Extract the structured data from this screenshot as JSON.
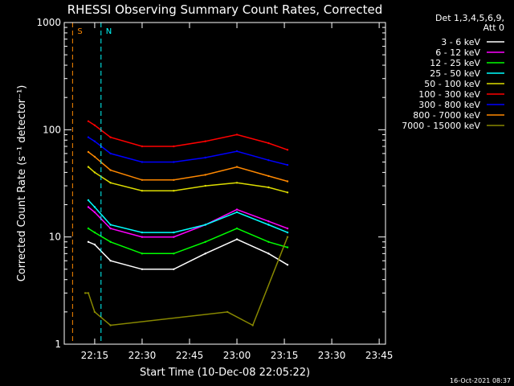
{
  "chart_data": {
    "type": "line",
    "title": "RHESSI Observing Summary Count Rates, Corrected",
    "xlabel": "Start Time (10-Dec-08 22:05:22)",
    "ylabel": "Corrected Count Rate (s⁻¹ detector⁻¹)",
    "y_scale": "log",
    "ylim": [
      1,
      1000
    ],
    "xlim": [
      "22:05:22",
      "23:47:00"
    ],
    "x_ticks": [
      "22:15",
      "22:30",
      "22:45",
      "23:00",
      "23:15",
      "23:30",
      "23:45"
    ],
    "y_ticks": [
      "1",
      "10",
      "100",
      "1000"
    ],
    "legend_header": [
      "Det 1,3,4,5,6,9,",
      "Att 0"
    ],
    "legend_placement": "right",
    "timestamp": "16-Oct-2021 08:37",
    "series": [
      {
        "name": "3 - 6 keV",
        "color": "#ffffff",
        "x": [
          "22:13",
          "22:15",
          "22:20",
          "22:30",
          "22:40",
          "22:50",
          "23:00",
          "23:10",
          "23:16"
        ],
        "y": [
          9,
          8.5,
          6,
          5,
          5,
          7,
          9.5,
          7,
          5.5
        ]
      },
      {
        "name": "6 - 12 keV",
        "color": "#ff00ff",
        "x": [
          "22:13",
          "22:15",
          "22:20",
          "22:30",
          "22:40",
          "22:50",
          "23:00",
          "23:10",
          "23:16"
        ],
        "y": [
          19,
          17,
          12,
          10,
          10,
          13,
          18,
          14,
          12
        ]
      },
      {
        "name": "12 - 25 keV",
        "color": "#00ff00",
        "x": [
          "22:13",
          "22:15",
          "22:20",
          "22:30",
          "22:40",
          "22:50",
          "23:00",
          "23:10",
          "23:16"
        ],
        "y": [
          12,
          11,
          9,
          7,
          7,
          9,
          12,
          9,
          8
        ]
      },
      {
        "name": "25 - 50 keV",
        "color": "#00ffff",
        "x": [
          "22:13",
          "22:15",
          "22:20",
          "22:30",
          "22:40",
          "22:50",
          "23:00",
          "23:10",
          "23:16"
        ],
        "y": [
          22,
          19,
          13,
          11,
          11,
          13,
          17,
          13,
          11
        ]
      },
      {
        "name": "50 - 100 keV",
        "color": "#dddd00",
        "x": [
          "22:13",
          "22:15",
          "22:20",
          "22:30",
          "22:40",
          "22:50",
          "23:00",
          "23:10",
          "23:16"
        ],
        "y": [
          45,
          40,
          32,
          27,
          27,
          30,
          32,
          29,
          26
        ]
      },
      {
        "name": "100 - 300 keV",
        "color": "#ff0000",
        "x": [
          "22:13",
          "22:15",
          "22:20",
          "22:30",
          "22:40",
          "22:50",
          "23:00",
          "23:10",
          "23:16"
        ],
        "y": [
          120,
          110,
          85,
          70,
          70,
          78,
          90,
          75,
          65
        ]
      },
      {
        "name": "300 - 800 keV",
        "color": "#0000ff",
        "x": [
          "22:13",
          "22:15",
          "22:20",
          "22:30",
          "22:40",
          "22:50",
          "23:00",
          "23:10",
          "23:16"
        ],
        "y": [
          85,
          78,
          60,
          50,
          50,
          55,
          63,
          52,
          47
        ]
      },
      {
        "name": "800 - 7000 keV",
        "color": "#ff8800",
        "x": [
          "22:13",
          "22:15",
          "22:20",
          "22:30",
          "22:40",
          "22:50",
          "23:00",
          "23:10",
          "23:16"
        ],
        "y": [
          62,
          56,
          42,
          34,
          34,
          38,
          45,
          37,
          33
        ]
      },
      {
        "name": "7000 - 15000 keV",
        "color": "#888800",
        "x": [
          "22:12",
          "22:13",
          "22:15",
          "22:20",
          "22:57",
          "23:05",
          "23:16"
        ],
        "y": [
          3,
          3,
          2,
          1.5,
          2,
          1.5,
          10
        ]
      }
    ],
    "annotations": [
      {
        "label": "S",
        "color": "#ff8800",
        "x": "22:08"
      },
      {
        "label": "N",
        "color": "#00ffff",
        "x": "22:17"
      }
    ]
  }
}
